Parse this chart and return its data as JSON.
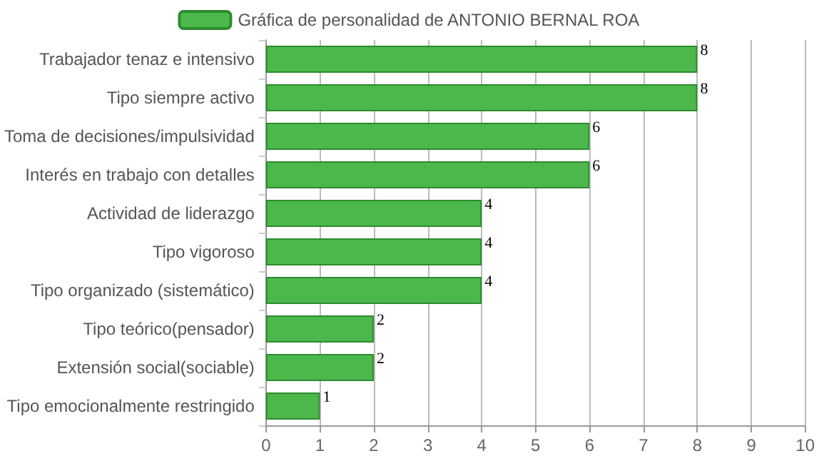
{
  "chart_data": {
    "type": "bar",
    "orientation": "horizontal",
    "categories": [
      "Trabajador tenaz e intensivo",
      "Tipo siempre activo",
      "Toma de decisiones/impulsividad",
      "Interés en trabajo con detalles",
      "Actividad de liderazgo",
      "Tipo vigoroso",
      "Tipo organizado (sistemático)",
      "Tipo teórico(pensador)",
      "Extensión social(sociable)",
      "Tipo emocionalmente restringido"
    ],
    "series": [
      {
        "name": "Gráfica de personalidad de ANTONIO BERNAL ROA",
        "color": "#4cb84c",
        "values": [
          8,
          8,
          6,
          6,
          4,
          4,
          4,
          2,
          2,
          1
        ]
      }
    ],
    "xlim": [
      0,
      10
    ],
    "xticks": [
      0,
      1,
      2,
      3,
      4,
      5,
      6,
      7,
      8,
      9,
      10
    ],
    "grid": "x",
    "legend": "top",
    "data_labels": true
  }
}
